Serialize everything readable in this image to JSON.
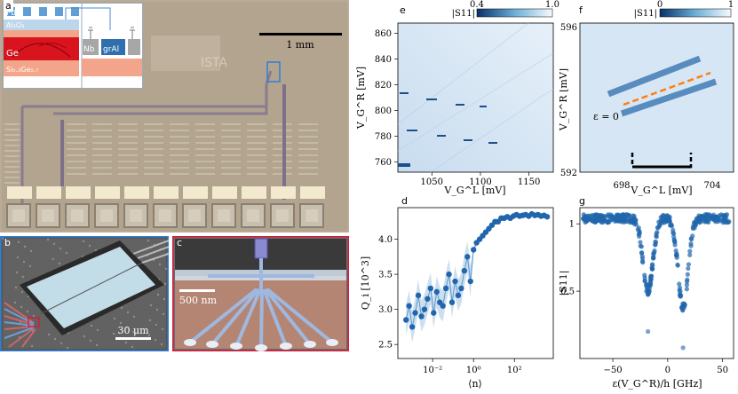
{
  "figure": {
    "panel_labels": {
      "a": "a",
      "b": "b",
      "c": "c",
      "d": "d",
      "e": "e",
      "f": "f",
      "g": "g"
    },
    "colors": {
      "blue_accent": "#2f7fd6",
      "red_accent": "#d81b3c",
      "marker": "#2166ac",
      "orange": "#ff7f0e"
    }
  },
  "panel_a": {
    "scale_bar": "1 mm",
    "stack_layers": [
      "Pd",
      "Al2O3",
      "Ge",
      "Si0.3Ge0.7"
    ],
    "stack_labels": {
      "pd": "Pd",
      "al2o3": "Al₂O₃",
      "ge": "Ge",
      "sige": "Si₀.₃Ge₀.₇"
    },
    "legend_labels": {
      "nb": "Nb",
      "gral": "grAl"
    }
  },
  "panel_b": {
    "scale_bar": "30 μm"
  },
  "panel_c": {
    "scale_bar": "500 nm"
  },
  "panel_e": {
    "colorbar_label": "|S11|",
    "colorbar_min": "0.4",
    "colorbar_max": "1.0",
    "ylabel": "V_G^R [mV]",
    "xlabel": "V_G^L [mV]",
    "yticks": [
      "860",
      "840",
      "820",
      "800",
      "780",
      "760"
    ],
    "xticks": [
      "1050",
      "1100",
      "1150"
    ]
  },
  "panel_f": {
    "colorbar_label": "|S11|",
    "colorbar_min": "0",
    "colorbar_max": "1",
    "ylabel": "V_G^R [mV]",
    "xlabel": "V_G^L [mV]",
    "ytick_top": "596",
    "ytick_bottom": "592",
    "xticks": [
      "698",
      "704"
    ],
    "annotation": "ε = 0"
  },
  "chart_data": [
    {
      "panel": "d",
      "type": "scatter",
      "title": "",
      "xlabel": "⟨n⟩",
      "ylabel": "Q_i [10^3]",
      "xscale": "log",
      "xlim_log10": [
        -3.7,
        3.9
      ],
      "ylim": [
        2.3,
        4.45
      ],
      "xtick_labels": [
        "10⁻²",
        "10⁰",
        "10²"
      ],
      "xtick_log10": [
        -2,
        0,
        2
      ],
      "ytick_labels": [
        "2.5",
        "3.0",
        "3.5",
        "4.0"
      ],
      "yticks": [
        2.5,
        3.0,
        3.5,
        4.0
      ],
      "series": [
        {
          "name": "Q_i",
          "log10_x": [
            -3.3,
            -3.15,
            -3.0,
            -2.85,
            -2.7,
            -2.55,
            -2.4,
            -2.25,
            -2.1,
            -1.95,
            -1.8,
            -1.65,
            -1.5,
            -1.35,
            -1.2,
            -1.05,
            -0.9,
            -0.75,
            -0.6,
            -0.45,
            -0.3,
            -0.15,
            0.0,
            0.15,
            0.3,
            0.45,
            0.6,
            0.75,
            0.9,
            1.05,
            1.2,
            1.35,
            1.5,
            1.65,
            1.8,
            1.95,
            2.1,
            2.25,
            2.4,
            2.55,
            2.7,
            2.85,
            3.0,
            3.15,
            3.3,
            3.45,
            3.6
          ],
          "values": [
            2.85,
            3.05,
            2.75,
            2.95,
            3.2,
            2.9,
            3.0,
            3.15,
            3.3,
            2.95,
            3.25,
            3.1,
            3.05,
            3.3,
            3.5,
            3.1,
            3.4,
            3.2,
            3.3,
            3.55,
            3.75,
            3.4,
            3.85,
            3.95,
            4.0,
            4.05,
            4.1,
            4.15,
            4.2,
            4.25,
            4.25,
            4.3,
            4.3,
            4.32,
            4.3,
            4.33,
            4.35,
            4.33,
            4.34,
            4.35,
            4.33,
            4.36,
            4.34,
            4.35,
            4.33,
            4.34,
            4.32
          ]
        }
      ]
    },
    {
      "panel": "g",
      "type": "scatter",
      "title": "",
      "xlabel": "ε(V_G^R)/h [GHz]",
      "ylabel": "|S11|",
      "xlim": [
        -80,
        60
      ],
      "ylim": [
        0.0,
        1.12
      ],
      "xticks": [
        -50,
        0,
        50
      ],
      "xtick_labels": [
        "−50",
        "0",
        "50"
      ],
      "yticks": [
        0.5,
        1.0
      ],
      "ytick_labels": [
        "0.5",
        "1"
      ],
      "dip_centers": [
        -18,
        14
      ],
      "baseline": 1.04,
      "dip_minima": [
        0.2,
        0.08
      ]
    }
  ]
}
